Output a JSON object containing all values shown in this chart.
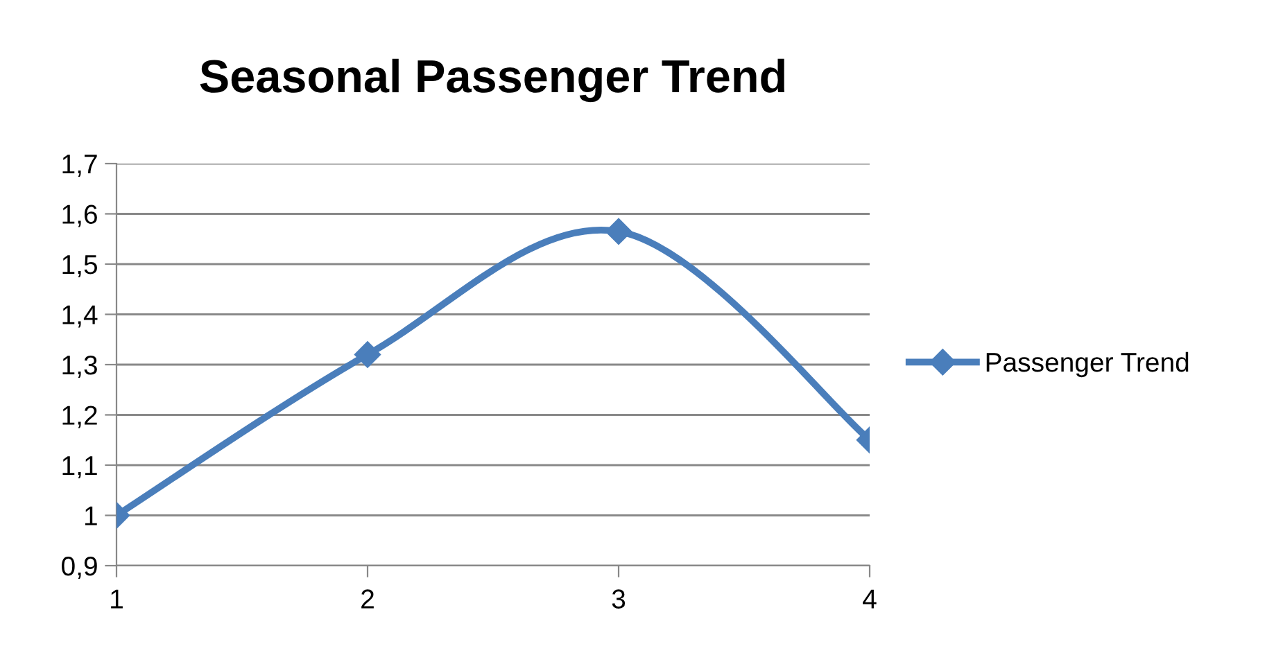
{
  "chart_data": {
    "type": "line",
    "title": "Seasonal Passenger Trend",
    "x": [
      1,
      2,
      3,
      4
    ],
    "series": [
      {
        "name": "Passenger Trend",
        "color": "#4a7ebb",
        "values": [
          1.0,
          1.32,
          1.565,
          1.15
        ]
      }
    ],
    "xlim": [
      1,
      4
    ],
    "xticks": [
      1,
      2,
      3,
      4
    ],
    "ylim": [
      0.9,
      1.7
    ],
    "yticks": [
      {
        "value": 0.9,
        "label": "0,9"
      },
      {
        "value": 1,
        "label": "1"
      },
      {
        "value": 1.1,
        "label": "1,1"
      },
      {
        "value": 1.2,
        "label": "1,2"
      },
      {
        "value": 1.3,
        "label": "1,3"
      },
      {
        "value": 1.4,
        "label": "1,4"
      },
      {
        "value": 1.5,
        "label": "1,5"
      },
      {
        "value": 1.6,
        "label": "1,6"
      },
      {
        "value": 1.7,
        "label": "1,7"
      }
    ],
    "grid": "y",
    "legend": "right",
    "marker": "diamond",
    "line_style": "solid"
  }
}
